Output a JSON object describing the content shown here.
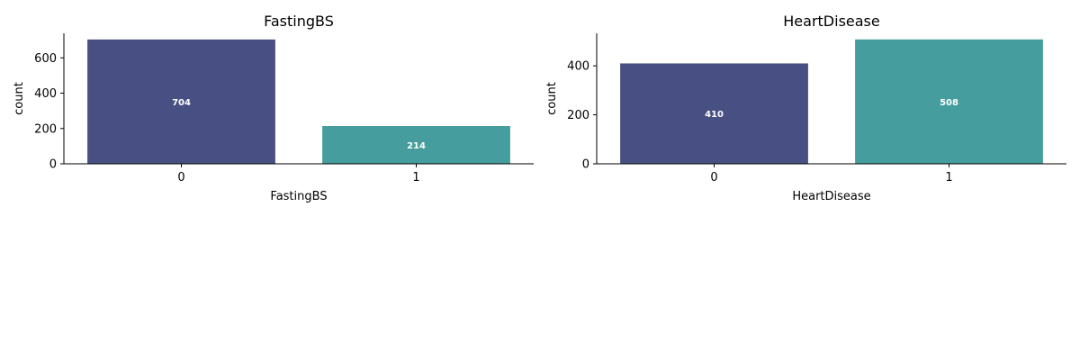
{
  "chart_data": [
    {
      "type": "bar",
      "title": "FastingBS",
      "xlabel": "FastingBS",
      "ylabel": "count",
      "categories": [
        "0",
        "1"
      ],
      "values": [
        704,
        214
      ],
      "data_labels": [
        "704",
        "214"
      ],
      "yticks": [
        0,
        200,
        400,
        600
      ],
      "ytick_labels": [
        "0",
        "200",
        "400",
        "600"
      ],
      "ylim": [
        0,
        739
      ],
      "colors": [
        "#485083",
        "#469d9d"
      ],
      "grid": false
    },
    {
      "type": "bar",
      "title": "HeartDisease",
      "xlabel": "HeartDisease",
      "ylabel": "count",
      "categories": [
        "0",
        "1"
      ],
      "values": [
        410,
        508
      ],
      "data_labels": [
        "410",
        "508"
      ],
      "yticks": [
        0,
        200,
        400
      ],
      "ytick_labels": [
        "0",
        "200",
        "400"
      ],
      "ylim": [
        0,
        533
      ],
      "colors": [
        "#485083",
        "#469d9d"
      ],
      "grid": false
    }
  ]
}
